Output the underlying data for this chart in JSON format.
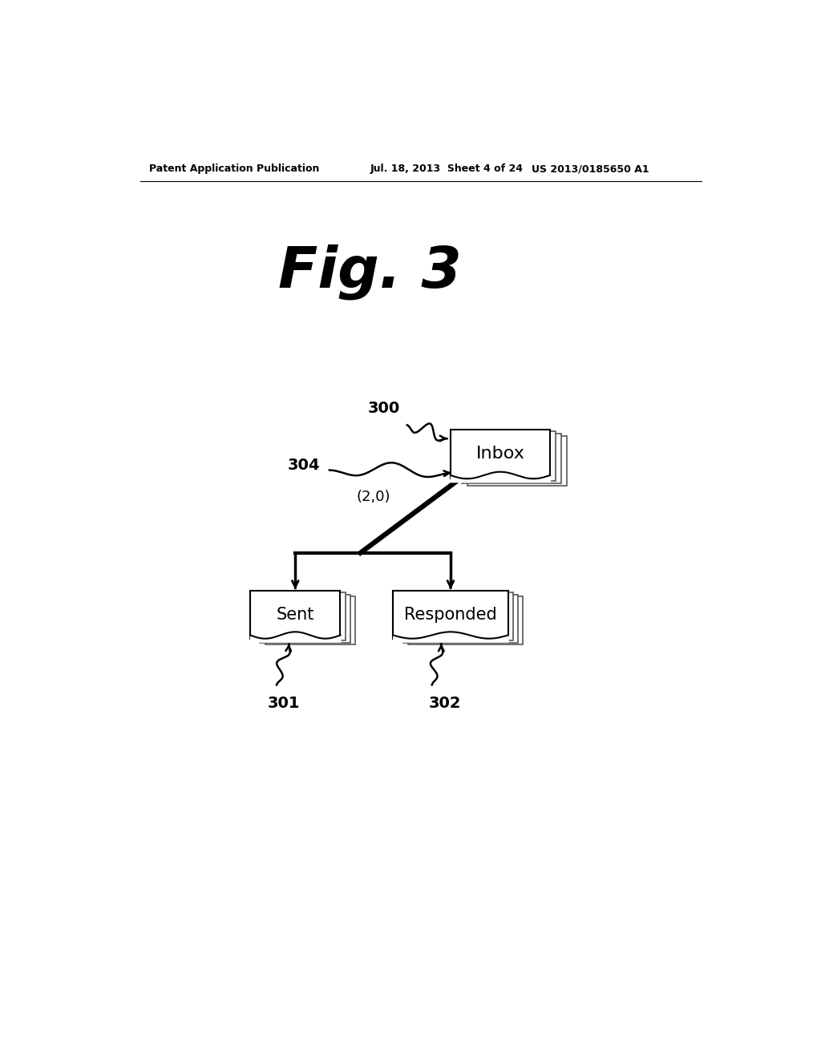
{
  "bg_color": "#ffffff",
  "header_left": "Patent Application Publication",
  "header_mid": "Jul. 18, 2013  Sheet 4 of 24",
  "header_right": "US 2013/0185650 A1",
  "fig_label": "Fig. 3",
  "inbox_label": "Inbox",
  "sent_label": "Sent",
  "responded_label": "Responded",
  "label_300": "300",
  "label_301": "301",
  "label_302": "302",
  "label_304": "304",
  "label_20": "(2,0)"
}
